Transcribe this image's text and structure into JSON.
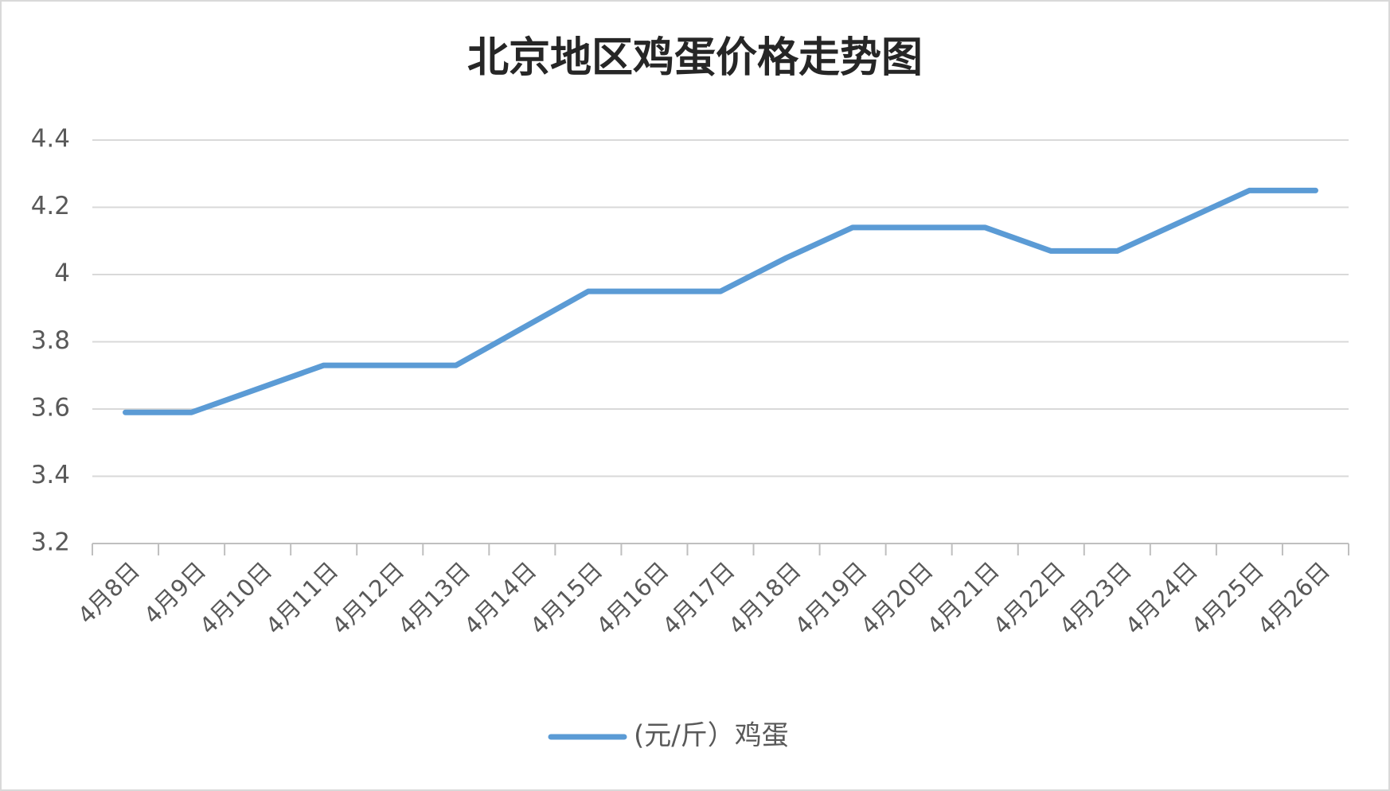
{
  "chart_data": {
    "type": "line",
    "title": "北京地区鸡蛋价格走势图",
    "categories": [
      "4月8日",
      "4月9日",
      "4月10日",
      "4月11日",
      "4月12日",
      "4月13日",
      "4月14日",
      "4月15日",
      "4月16日",
      "4月17日",
      "4月18日",
      "4月19日",
      "4月20日",
      "4月21日",
      "4月22日",
      "4月23日",
      "4月24日",
      "4月25日",
      "4月26日"
    ],
    "series": [
      {
        "name": "(元/斤）鸡蛋",
        "color": "#5b9bd5",
        "values": [
          3.59,
          3.59,
          3.66,
          3.73,
          3.73,
          3.73,
          3.84,
          3.95,
          3.95,
          3.95,
          4.05,
          4.14,
          4.14,
          4.14,
          4.07,
          4.07,
          4.16,
          4.25,
          4.25
        ]
      }
    ],
    "ylim": [
      3.2,
      4.4
    ],
    "yticks": [
      3.2,
      3.4,
      3.6,
      3.8,
      4,
      4.2,
      4.4
    ],
    "grid": true,
    "legend": "bottom"
  }
}
